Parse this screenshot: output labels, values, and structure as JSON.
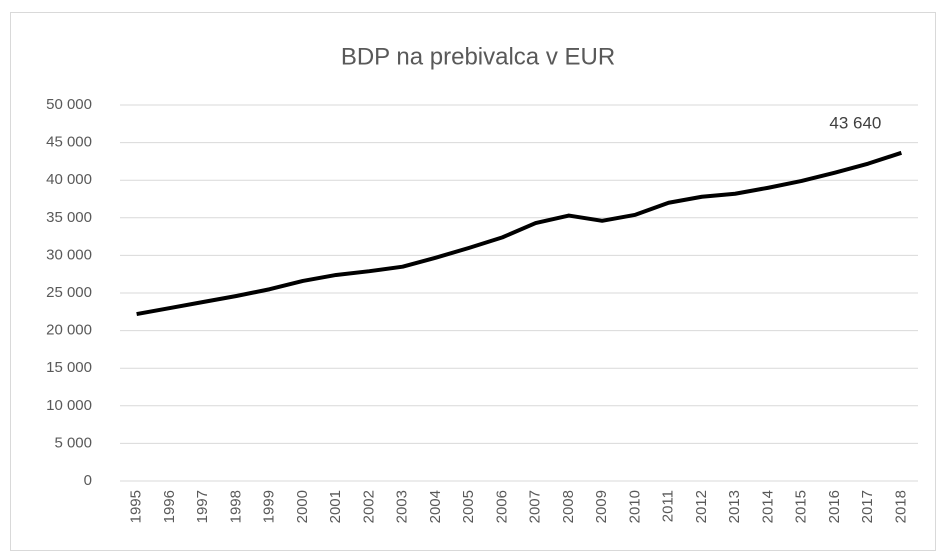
{
  "chart_data": {
    "type": "line",
    "title": "BDP na prebivalca v EUR",
    "categories": [
      "1995",
      "1996",
      "1997",
      "1998",
      "1999",
      "2000",
      "2001",
      "2002",
      "2003",
      "2004",
      "2005",
      "2006",
      "2007",
      "2008",
      "2009",
      "2010",
      "2011",
      "2012",
      "2013",
      "2014",
      "2015",
      "2016",
      "2017",
      "2018"
    ],
    "series": [
      {
        "name": "BDP na prebivalca",
        "color": "#000000",
        "values": [
          22200,
          23000,
          23800,
          24600,
          25500,
          26600,
          27400,
          27900,
          28500,
          29700,
          31000,
          32400,
          34300,
          35300,
          34600,
          35400,
          37000,
          37800,
          38200,
          39000,
          39900,
          41000,
          42200,
          43640
        ],
        "value_labels": [
          null,
          null,
          null,
          null,
          null,
          null,
          null,
          null,
          null,
          null,
          null,
          null,
          null,
          null,
          null,
          null,
          null,
          null,
          null,
          null,
          null,
          null,
          null,
          "43 640"
        ]
      }
    ],
    "ylim": [
      0,
      50000
    ],
    "yticks": [
      0,
      {
        "value": 5000,
        "label": "5 000"
      },
      {
        "value": 10000,
        "label": "10 000"
      },
      {
        "value": 15000,
        "label": "15 000"
      },
      {
        "value": 20000,
        "label": "20 000"
      },
      {
        "value": 25000,
        "label": "25 000"
      },
      {
        "value": 30000,
        "label": "30 000"
      },
      {
        "value": 35000,
        "label": "35 000"
      },
      {
        "value": 40000,
        "label": "40 000"
      },
      {
        "value": 45000,
        "label": "45 000"
      },
      {
        "value": 50000,
        "label": "50 000"
      }
    ],
    "grid": true
  }
}
